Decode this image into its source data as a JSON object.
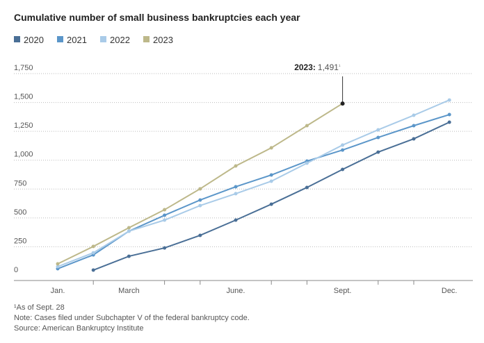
{
  "chart_data": {
    "type": "line",
    "title": "Cumulative number of small business bankruptcies each year",
    "categories": [
      "Jan.",
      null,
      "March",
      null,
      null,
      "June.",
      null,
      null,
      "Sept.",
      null,
      null,
      "Dec."
    ],
    "series": [
      {
        "name": "2020",
        "color": "#4a6f96",
        "values": [
          null,
          48,
          168,
          240,
          349,
          481,
          619,
          764,
          920,
          1070,
          1185,
          1329
        ]
      },
      {
        "name": "2021",
        "color": "#5b96c9",
        "values": [
          60,
          180,
          385,
          523,
          655,
          770,
          872,
          992,
          1088,
          1197,
          1299,
          1395
        ]
      },
      {
        "name": "2022",
        "color": "#a9cbe8",
        "values": [
          78,
          198,
          385,
          481,
          607,
          710,
          818,
          974,
          1131,
          1263,
          1389,
          1521
        ]
      },
      {
        "name": "2023",
        "color": "#bdb88a",
        "values": [
          102,
          253,
          415,
          571,
          752,
          950,
          1107,
          1299,
          1491,
          null,
          null,
          null
        ]
      }
    ],
    "ylim": [
      0,
      1750
    ],
    "yticks": [
      0,
      250,
      500,
      750,
      {
        "value": 1000,
        "label": "1,000"
      },
      {
        "value": 1250,
        "label": "1,250"
      },
      {
        "value": 1500,
        "label": "1,500"
      },
      {
        "value": 1750,
        "label": "1,750"
      }
    ],
    "grid": true,
    "annotation": {
      "label": "2023:",
      "value": 1491,
      "value_label": "1,491",
      "marker": "¹"
    },
    "footnotes": [
      "¹As of Sept. 28",
      "Note: Cases filed under Subchapter V of the federal bankruptcy code.",
      "Source: American Bankruptcy Institute"
    ]
  }
}
